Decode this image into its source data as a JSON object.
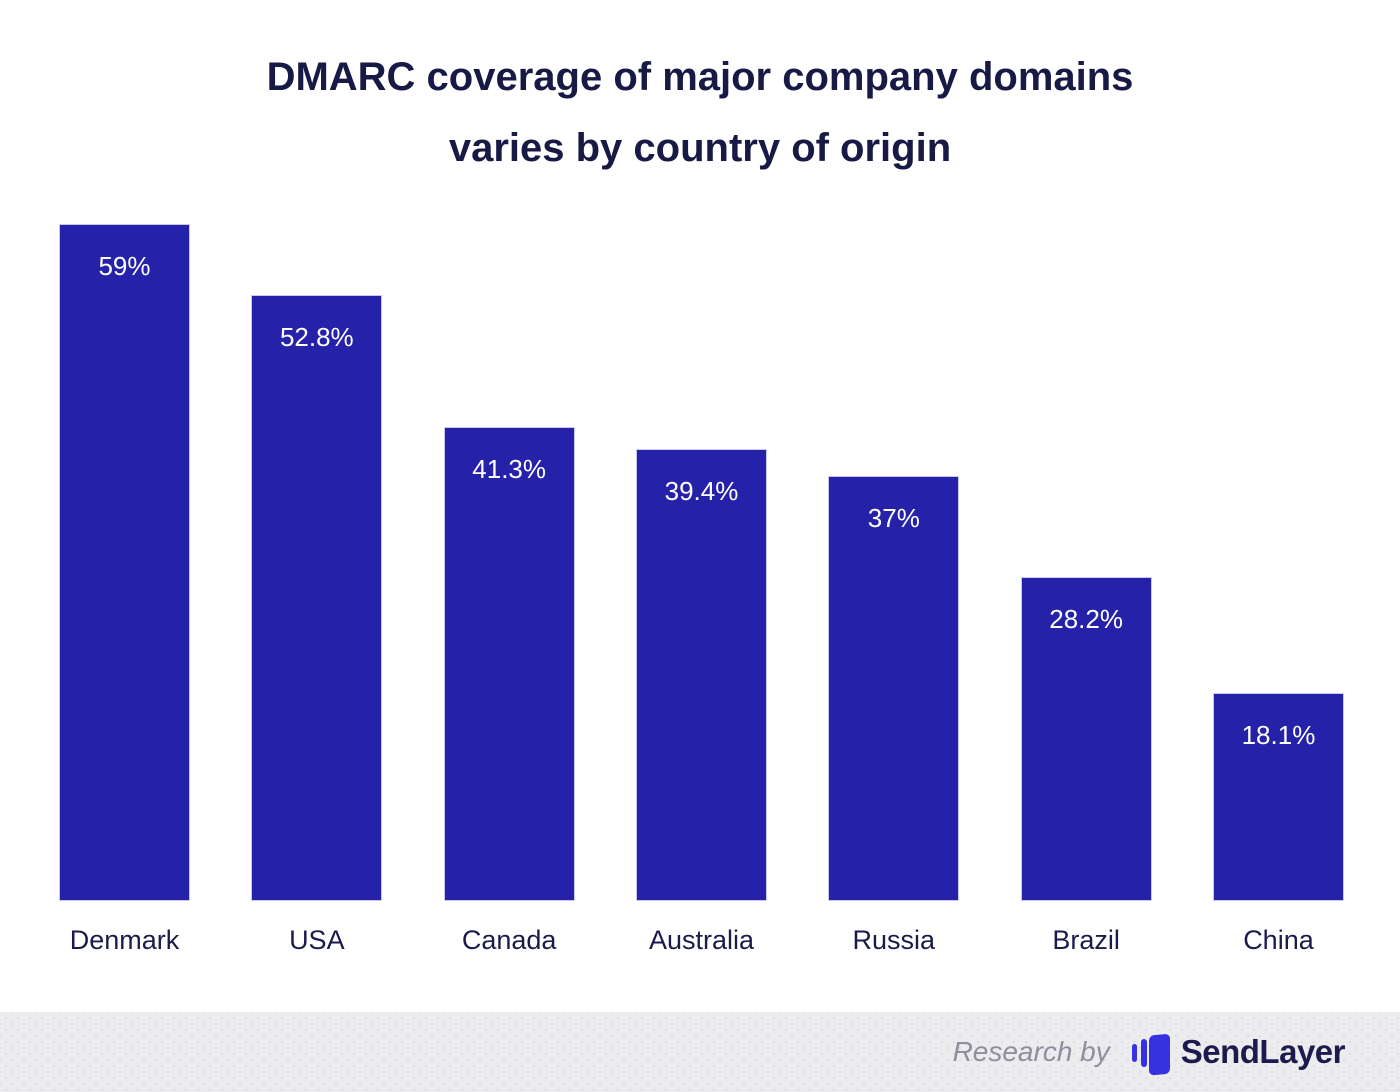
{
  "chart_data": {
    "type": "bar",
    "title_lines": [
      "DMARC coverage of major company domains",
      "varies by country of origin"
    ],
    "title": "DMARC coverage of major company domains varies by country of origin",
    "categories": [
      "Denmark",
      "USA",
      "Canada",
      "Australia",
      "Russia",
      "Brazil",
      "China"
    ],
    "values": [
      59,
      52.8,
      41.3,
      39.4,
      37,
      28.2,
      18.1
    ],
    "value_labels": [
      "59%",
      "52.8%",
      "41.3%",
      "39.4%",
      "37%",
      "28.2%",
      "18.1%"
    ],
    "xlabel": "",
    "ylabel": "",
    "ylim": [
      0,
      59
    ],
    "grid": false,
    "legend": false,
    "bar_color": "#2522A9",
    "bar_border_color": "#C9C8EA",
    "value_label_color": "#FFFFFF",
    "category_label_color": "#1A1B4B",
    "title_color": "#171A44"
  },
  "footer": {
    "research_by_label": "Research by",
    "brand_name": "SendLayer",
    "background_color": "#ECECEF",
    "dot_color": "#DCDCE3",
    "research_by_color": "#8E8E9D",
    "brand_text_color": "#1B1B4D",
    "logo_color": "#3732E0",
    "logo_icon": "sendlayer-bars-icon"
  }
}
